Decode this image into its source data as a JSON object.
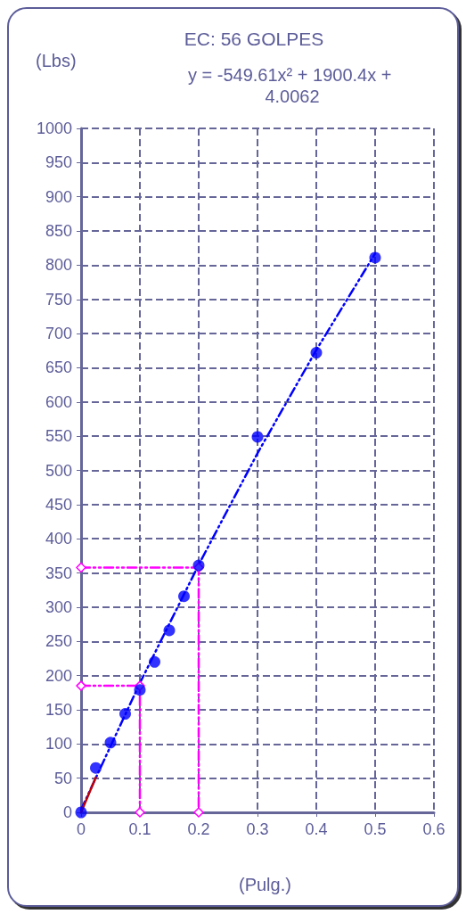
{
  "chart_data": {
    "type": "scatter",
    "title": "EC: 56 GOLPES",
    "ylabel": "(Lbs)",
    "xlabel": "(Pulg.)",
    "annotations": [
      "y = -549.61x² + 1900.4x + 4.0062"
    ],
    "xlim": [
      0,
      0.6
    ],
    "xticks": [
      0,
      0.1,
      0.2,
      0.3,
      0.4,
      0.5,
      0.6
    ],
    "ylim": [
      0,
      1000
    ],
    "yticks": [
      0,
      50,
      100,
      150,
      200,
      250,
      300,
      350,
      400,
      450,
      500,
      550,
      600,
      650,
      700,
      750,
      800,
      850,
      900,
      950,
      1000
    ],
    "grid": true,
    "series": [
      {
        "type": "line",
        "color": "#0000ff",
        "line_style": "dashed",
        "marker": "none",
        "x": [
          0,
          0.1,
          0.2,
          0.3,
          0.4,
          0.5
        ],
        "values": [
          4,
          189,
          362,
          525,
          676,
          817
        ]
      },
      {
        "type": "line",
        "color": "#ff00ff",
        "line_style": "dashed",
        "marker": "diamond",
        "x": [
          0,
          0.1,
          0.1
        ],
        "values": [
          185,
          185,
          0
        ]
      },
      {
        "type": "line",
        "color": "#ff00ff",
        "line_style": "dashed",
        "marker": "diamond",
        "x": [
          0,
          0.2,
          0.2
        ],
        "values": [
          358,
          358,
          0
        ]
      },
      {
        "type": "line",
        "color": "#c00000",
        "line_style": "solid",
        "marker": "none",
        "x": [
          0,
          0.025
        ],
        "values": [
          0,
          51
        ]
      },
      {
        "color": "#0000ff",
        "marker": "circle",
        "x": [
          0,
          0.025,
          0.05,
          0.075,
          0.1,
          0.125,
          0.15,
          0.175,
          0.2,
          0.3,
          0.4,
          0.5
        ],
        "values": [
          0,
          65,
          102,
          144,
          179,
          220,
          266,
          316,
          361,
          549,
          672,
          811
        ]
      }
    ]
  }
}
